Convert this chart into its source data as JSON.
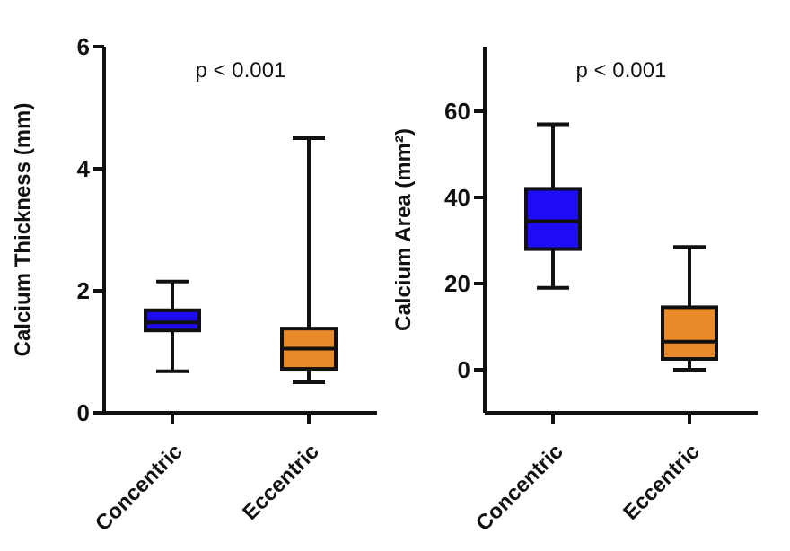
{
  "chart_data": [
    {
      "type": "box",
      "categories": [
        "Concentric",
        "Eccentric"
      ],
      "ylabel": "Calcium Thickness (mm)",
      "ylim": [
        0,
        6
      ],
      "yticks": [
        0,
        2,
        4,
        6
      ],
      "colors": [
        "#1f0cf5",
        "#e8892a"
      ],
      "annotations": [
        "p < 0.001"
      ],
      "boxes": [
        {
          "low": 0.68,
          "q1": 1.35,
          "median": 1.48,
          "q3": 1.68,
          "high": 2.15
        },
        {
          "low": 0.5,
          "q1": 0.72,
          "median": 1.05,
          "q3": 1.38,
          "high": 4.5
        }
      ]
    },
    {
      "type": "box",
      "categories": [
        "Concentric",
        "Eccentric"
      ],
      "ylabel": "Calcium Area (mm²)",
      "ylim": [
        -10,
        75
      ],
      "yticks": [
        0,
        20,
        40,
        60
      ],
      "colors": [
        "#1f0cf5",
        "#e8892a"
      ],
      "annotations": [
        "p < 0.001"
      ],
      "boxes": [
        {
          "low": 19,
          "q1": 28,
          "median": 34.5,
          "q3": 42,
          "high": 57
        },
        {
          "low": 0,
          "q1": 2.5,
          "median": 6.5,
          "q3": 14.5,
          "high": 28.5
        }
      ]
    }
  ]
}
